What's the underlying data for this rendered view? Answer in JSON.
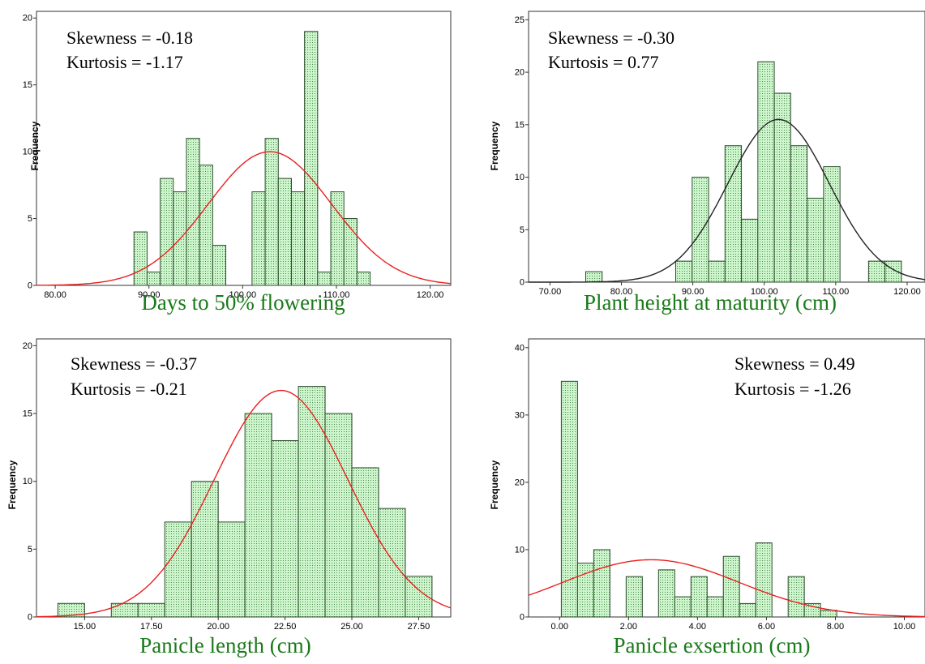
{
  "colors": {
    "bar_fill": "#ccf5cc",
    "bar_stroke": "#2b4a2b",
    "bar_dots": "#4f8a4f",
    "curve_red": "#e8211f",
    "curve_black": "#222222",
    "caption": "#1a7a1a"
  },
  "chart_data": [
    {
      "type": "bar",
      "caption": "Days to 50% flowering",
      "ylabel": "Frequency",
      "stats": {
        "skewness": "Skewness = -0.18",
        "kurtosis": "Kurtosis = -1.17"
      },
      "stats_position": "top-left",
      "xlim": [
        78,
        122.2
      ],
      "ylim": [
        0,
        20.5
      ],
      "xticks": [
        80,
        90,
        100,
        110,
        120
      ],
      "xtick_labels": [
        "80.00",
        "90.00",
        "100.00",
        "110.00",
        "120.00"
      ],
      "yticks": [
        0,
        5,
        10,
        15,
        20
      ],
      "ytick_labels": [
        "0",
        "5",
        "10",
        "15",
        "20"
      ],
      "bin_width": 1.4,
      "bins": [
        {
          "x": 88.4,
          "y": 4
        },
        {
          "x": 89.8,
          "y": 1
        },
        {
          "x": 91.2,
          "y": 8
        },
        {
          "x": 92.6,
          "y": 7
        },
        {
          "x": 94.0,
          "y": 11
        },
        {
          "x": 95.4,
          "y": 9
        },
        {
          "x": 96.8,
          "y": 3
        },
        {
          "x": 101.0,
          "y": 7
        },
        {
          "x": 102.4,
          "y": 11
        },
        {
          "x": 103.8,
          "y": 8
        },
        {
          "x": 105.2,
          "y": 7
        },
        {
          "x": 106.6,
          "y": 19
        },
        {
          "x": 108.0,
          "y": 1
        },
        {
          "x": 109.4,
          "y": 7
        },
        {
          "x": 110.8,
          "y": 5
        },
        {
          "x": 112.2,
          "y": 1
        }
      ],
      "curve": {
        "mean": 102.9,
        "sd": 6.6,
        "peak": 10,
        "color": "red"
      }
    },
    {
      "type": "bar",
      "caption": "Plant height at maturity (cm)",
      "ylabel": "Frequency",
      "stats": {
        "skewness": "Skewness = -0.30",
        "kurtosis": "Kurtosis = 0.77"
      },
      "stats_position": "top-left",
      "xlim": [
        67,
        122.5
      ],
      "ylim": [
        0,
        25.8
      ],
      "xticks": [
        70,
        80,
        90,
        100,
        110,
        120
      ],
      "xtick_labels": [
        "70.00",
        "80.00",
        "90.00",
        "100.00",
        "110.00",
        "120.00"
      ],
      "yticks": [
        0,
        5,
        10,
        15,
        20,
        25
      ],
      "ytick_labels": [
        "0",
        "5",
        "10",
        "15",
        "20",
        "25"
      ],
      "bin_width": 2.3,
      "bins": [
        {
          "x": 75.0,
          "y": 1
        },
        {
          "x": 87.6,
          "y": 2
        },
        {
          "x": 89.9,
          "y": 10
        },
        {
          "x": 92.2,
          "y": 2
        },
        {
          "x": 94.5,
          "y": 13
        },
        {
          "x": 96.8,
          "y": 6
        },
        {
          "x": 99.1,
          "y": 21
        },
        {
          "x": 101.4,
          "y": 18
        },
        {
          "x": 103.7,
          "y": 13
        },
        {
          "x": 106.0,
          "y": 8
        },
        {
          "x": 108.3,
          "y": 11
        },
        {
          "x": 114.6,
          "y": 2
        },
        {
          "x": 116.9,
          "y": 2
        }
      ],
      "curve": {
        "mean": 102.0,
        "sd": 7.1,
        "peak": 15.5,
        "color": "black"
      }
    },
    {
      "type": "bar",
      "caption": "Panicle length (cm)",
      "ylabel": "Frequency",
      "stats": {
        "skewness": "Skewness = -0.37",
        "kurtosis": "Kurtosis = -0.21"
      },
      "stats_position": "top-left",
      "xlim": [
        13.2,
        28.7
      ],
      "ylim": [
        0,
        20.5
      ],
      "xticks": [
        15,
        17.5,
        20,
        22.5,
        25,
        27.5
      ],
      "xtick_labels": [
        "15.00",
        "17.50",
        "20.00",
        "22.50",
        "25.00",
        "27.50"
      ],
      "yticks": [
        0,
        5,
        10,
        15,
        20
      ],
      "ytick_labels": [
        "0",
        "5",
        "10",
        "15",
        "20"
      ],
      "bin_width": 1.0,
      "bins": [
        {
          "x": 14.0,
          "y": 1
        },
        {
          "x": 16.0,
          "y": 1
        },
        {
          "x": 17.0,
          "y": 1
        },
        {
          "x": 18.0,
          "y": 7
        },
        {
          "x": 19.0,
          "y": 10
        },
        {
          "x": 20.0,
          "y": 7
        },
        {
          "x": 21.0,
          "y": 15
        },
        {
          "x": 22.0,
          "y": 13
        },
        {
          "x": 23.0,
          "y": 17
        },
        {
          "x": 24.0,
          "y": 15
        },
        {
          "x": 25.0,
          "y": 11
        },
        {
          "x": 26.0,
          "y": 8
        },
        {
          "x": 27.0,
          "y": 3
        }
      ],
      "curve": {
        "mean": 22.35,
        "sd": 2.5,
        "peak": 16.7,
        "color": "red"
      }
    },
    {
      "type": "bar",
      "caption": "Panicle exsertion (cm)",
      "ylabel": "Frequency",
      "stats": {
        "skewness": "Skewness = 0.49",
        "kurtosis": "Kurtosis = -1.26"
      },
      "stats_position": "top-right",
      "xlim": [
        -0.9,
        10.6
      ],
      "ylim": [
        0,
        41.3
      ],
      "xticks": [
        0,
        2,
        4,
        6,
        8,
        10
      ],
      "xtick_labels": [
        "0.00",
        "2.00",
        "4.00",
        "6.00",
        "8.00",
        "10.00"
      ],
      "yticks": [
        0,
        10,
        20,
        30,
        40
      ],
      "ytick_labels": [
        "0",
        "10",
        "20",
        "30",
        "40"
      ],
      "bin_width": 0.47,
      "bins": [
        {
          "x": 0.05,
          "y": 35
        },
        {
          "x": 0.52,
          "y": 8
        },
        {
          "x": 0.99,
          "y": 10
        },
        {
          "x": 1.93,
          "y": 6
        },
        {
          "x": 2.87,
          "y": 7
        },
        {
          "x": 3.34,
          "y": 3
        },
        {
          "x": 3.81,
          "y": 6
        },
        {
          "x": 4.28,
          "y": 3
        },
        {
          "x": 4.75,
          "y": 9
        },
        {
          "x": 5.22,
          "y": 2
        },
        {
          "x": 5.69,
          "y": 11
        },
        {
          "x": 6.63,
          "y": 6
        },
        {
          "x": 7.1,
          "y": 2
        },
        {
          "x": 7.57,
          "y": 1
        }
      ],
      "curve": {
        "mean": 2.65,
        "sd": 2.55,
        "peak": 8.5,
        "color": "red"
      }
    }
  ]
}
